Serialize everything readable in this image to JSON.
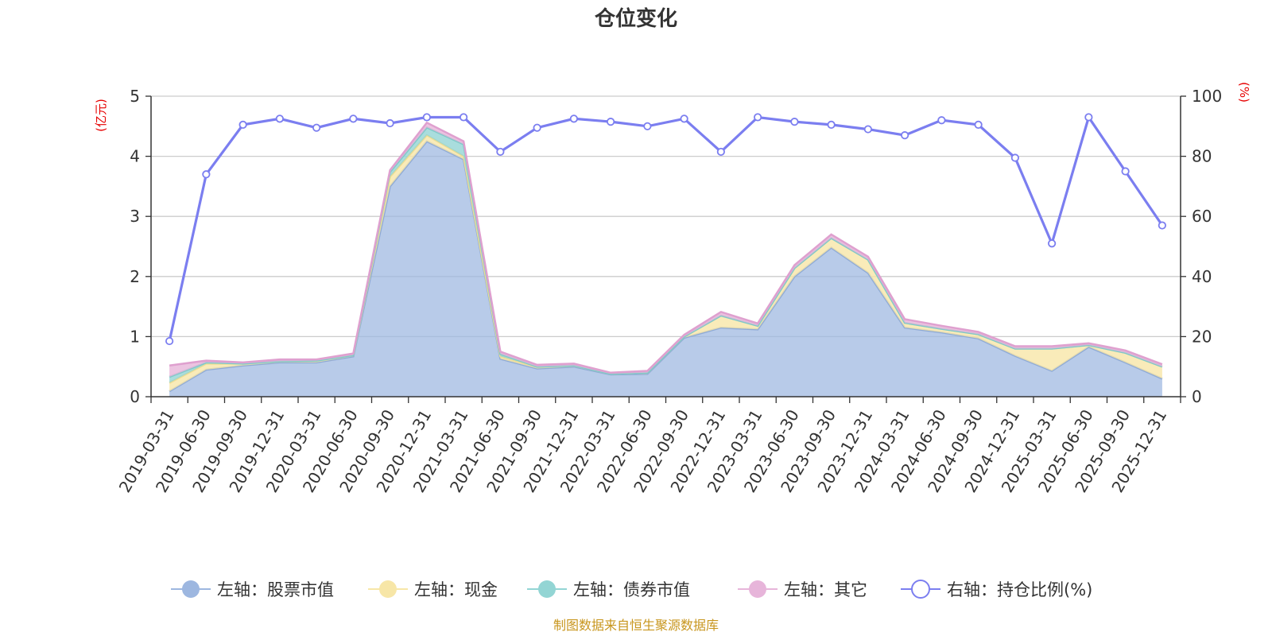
{
  "chart_data": {
    "type": "area",
    "title": "仓位变化",
    "left_axis_unit": "(亿元)",
    "right_axis_unit": "(%)",
    "left_ylim": [
      0,
      5
    ],
    "left_ticks": [
      "0",
      "1",
      "2",
      "3",
      "4",
      "5"
    ],
    "right_ylim": [
      0,
      100
    ],
    "right_ticks": [
      "0",
      "20",
      "40",
      "60",
      "80",
      "100"
    ],
    "categories": [
      "2019-03-31",
      "2019-06-30",
      "2019-09-30",
      "2019-12-31",
      "2020-03-31",
      "2020-06-30",
      "2020-09-30",
      "2020-12-31",
      "2021-03-31",
      "2021-06-30",
      "2021-09-30",
      "2021-12-31",
      "2022-03-31",
      "2022-06-30",
      "2022-09-30",
      "2022-12-31",
      "2023-03-31",
      "2023-06-30",
      "2023-09-30",
      "2023-12-31",
      "2024-03-31",
      "2024-06-30",
      "2024-09-30",
      "2024-12-31",
      "2025-03-31",
      "2025-06-30",
      "2025-09-30",
      "2025-12-31"
    ],
    "series": [
      {
        "name": "左轴：股票市值",
        "axis": "left",
        "color": "#9db7e0",
        "values": [
          0.09,
          0.45,
          0.52,
          0.57,
          0.57,
          0.67,
          3.5,
          4.25,
          3.95,
          0.63,
          0.47,
          0.5,
          0.37,
          0.38,
          0.98,
          1.15,
          1.12,
          2.0,
          2.48,
          2.06,
          1.15,
          1.07,
          0.97,
          0.68,
          0.43,
          0.83,
          0.57,
          0.3
        ]
      },
      {
        "name": "左轴：现金",
        "axis": "left",
        "color": "#f7e6a7",
        "values": [
          0.14,
          0.1,
          0.03,
          0.02,
          0.03,
          0.02,
          0.16,
          0.1,
          0.05,
          0.04,
          0.03,
          0.02,
          0.01,
          0.02,
          0.02,
          0.2,
          0.06,
          0.14,
          0.16,
          0.22,
          0.08,
          0.06,
          0.07,
          0.12,
          0.37,
          0.03,
          0.16,
          0.2
        ]
      },
      {
        "name": "左轴：债券市值",
        "axis": "left",
        "color": "#93d5d4",
        "values": [
          0.1,
          0.02,
          0.0,
          0.0,
          0.0,
          0.0,
          0.08,
          0.13,
          0.2,
          0.04,
          0.0,
          0.0,
          0.0,
          0.0,
          0.0,
          0.0,
          0.0,
          0.0,
          0.0,
          0.0,
          0.0,
          0.0,
          0.0,
          0.0,
          0.0,
          0.0,
          0.0,
          0.0
        ]
      },
      {
        "name": "左轴：其它",
        "axis": "left",
        "color": "#e7b5da",
        "values": [
          0.19,
          0.03,
          0.02,
          0.03,
          0.02,
          0.03,
          0.03,
          0.08,
          0.05,
          0.04,
          0.03,
          0.03,
          0.02,
          0.03,
          0.03,
          0.06,
          0.04,
          0.05,
          0.06,
          0.05,
          0.06,
          0.05,
          0.04,
          0.04,
          0.04,
          0.03,
          0.04,
          0.04
        ]
      },
      {
        "name": "右轴：持仓比例(%)",
        "axis": "right",
        "color": "#7b7ef0",
        "values": [
          18.5,
          74,
          90.5,
          92.5,
          89.5,
          92.5,
          91,
          93,
          93,
          81.5,
          89.5,
          92.5,
          91.5,
          90,
          92.5,
          81.5,
          93,
          91.5,
          90.5,
          89,
          87,
          92,
          90.5,
          79.5,
          51,
          93,
          75,
          57
        ]
      }
    ],
    "legend_position": "bottom",
    "source_note": "制图数据来自恒生聚源数据库"
  }
}
